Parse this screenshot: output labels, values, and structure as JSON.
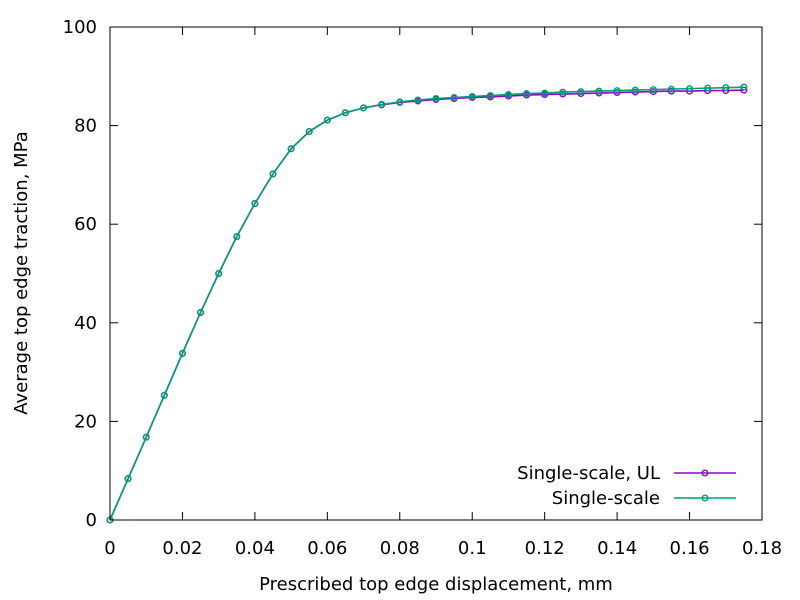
{
  "chart_data": {
    "type": "line",
    "xlabel": "Prescribed top edge displacement, mm",
    "ylabel": "Average top edge traction, MPa",
    "xlim": [
      0,
      0.18
    ],
    "ylim": [
      0,
      100
    ],
    "x_ticks": [
      0,
      0.02,
      0.04,
      0.06,
      0.08,
      0.1,
      0.12,
      0.14,
      0.16,
      0.18
    ],
    "x_tick_labels": [
      "0",
      "0.02",
      "0.04",
      "0.06",
      "0.08",
      "0.1",
      "0.12",
      "0.14",
      "0.16",
      "0.18"
    ],
    "y_ticks": [
      0,
      20,
      40,
      60,
      80,
      100
    ],
    "y_tick_labels": [
      "0",
      "20",
      "40",
      "60",
      "80",
      "100"
    ],
    "grid": false,
    "legend_position": "bottom-right",
    "x": [
      0,
      0.005,
      0.01,
      0.015,
      0.02,
      0.025,
      0.03,
      0.035,
      0.04,
      0.045,
      0.05,
      0.055,
      0.06,
      0.065,
      0.07,
      0.075,
      0.08,
      0.085,
      0.09,
      0.095,
      0.1,
      0.105,
      0.11,
      0.115,
      0.12,
      0.125,
      0.13,
      0.135,
      0.14,
      0.145,
      0.15,
      0.155,
      0.16,
      0.165,
      0.17,
      0.175
    ],
    "series": [
      {
        "name": "Single-scale, UL",
        "color": "#9400d3",
        "values": [
          0,
          8.4,
          16.8,
          25.3,
          33.8,
          42.1,
          50.0,
          57.5,
          64.2,
          70.2,
          75.3,
          78.8,
          81.1,
          82.6,
          83.6,
          84.2,
          84.7,
          85.0,
          85.3,
          85.5,
          85.7,
          85.8,
          86.0,
          86.2,
          86.3,
          86.4,
          86.5,
          86.6,
          86.7,
          86.8,
          86.9,
          87.0,
          87.0,
          87.1,
          87.1,
          87.2
        ]
      },
      {
        "name": "Single-scale",
        "color": "#009e73",
        "values": [
          0,
          8.4,
          16.8,
          25.3,
          33.8,
          42.1,
          50.0,
          57.5,
          64.2,
          70.2,
          75.3,
          78.8,
          81.1,
          82.6,
          83.6,
          84.3,
          84.8,
          85.2,
          85.5,
          85.7,
          85.9,
          86.1,
          86.3,
          86.5,
          86.6,
          86.8,
          86.9,
          87.0,
          87.1,
          87.2,
          87.3,
          87.4,
          87.5,
          87.6,
          87.7,
          87.8
        ]
      }
    ]
  }
}
